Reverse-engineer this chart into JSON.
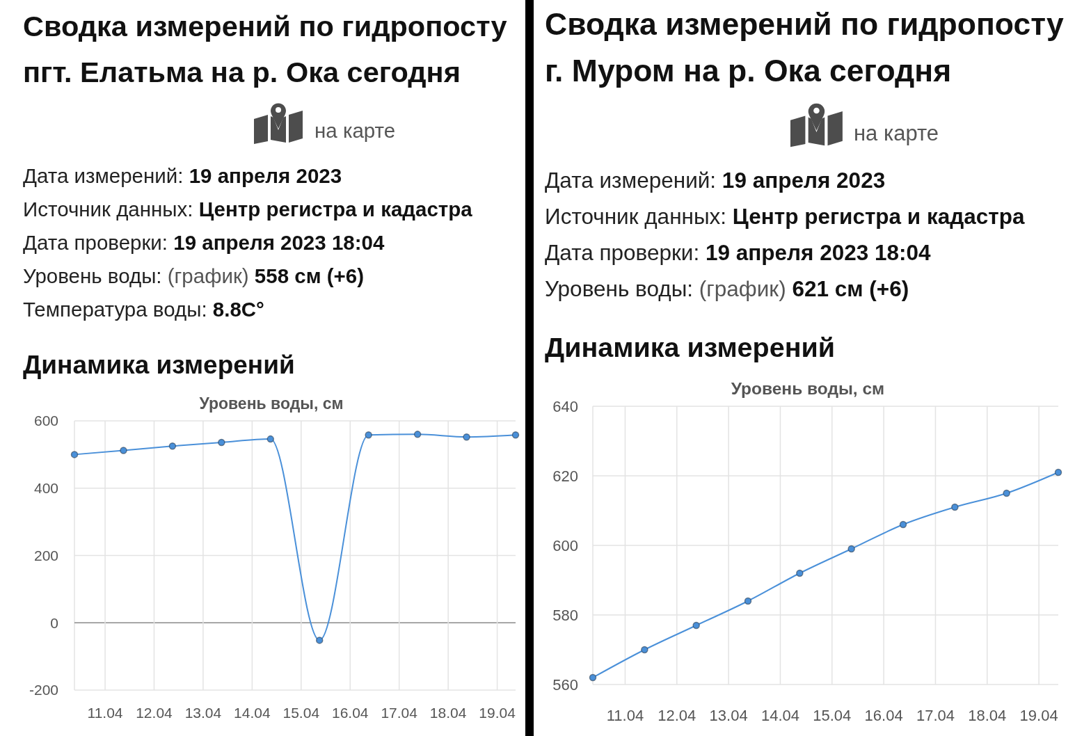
{
  "chart_data": [
    {
      "type": "line",
      "title": "Сводка измерений по гидропосту пгт. Елатьма на р. Ока сегодня",
      "subtitle": "Уровень воды, см",
      "annotations": [
        "на карте",
        "Дата измерений: 19 апреля 2023",
        "Источник данных: Центр регистра и кадастра",
        "Дата проверки: 19 апреля 2023 18:04",
        "Уровень воды: (график) 558 см (+6)",
        "Температура воды: 8.8C°",
        "Динамика измерений"
      ],
      "x": [
        "2023-04-10T09:00",
        "2023-04-11T09:00",
        "2023-04-12T09:00",
        "2023-04-13T09:00",
        "2023-04-14T09:00",
        "2023-04-15T09:00",
        "2023-04-16T09:00",
        "2023-04-17T09:00",
        "2023-04-18T09:00",
        "2023-04-19T09:00"
      ],
      "series": [
        {
          "color": "#4a90d9",
          "values": [
            500,
            512,
            525,
            536,
            546,
            -52,
            558,
            560,
            552,
            558
          ]
        }
      ],
      "xlim": [
        "2023-04-10T09:00",
        "2023-04-19T09:00"
      ],
      "xticks": [
        {
          "value": "2023-04-11",
          "label": "11.04"
        },
        {
          "value": "2023-04-12",
          "label": "12.04"
        },
        {
          "value": "2023-04-13",
          "label": "13.04"
        },
        {
          "value": "2023-04-14",
          "label": "14.04"
        },
        {
          "value": "2023-04-15",
          "label": "15.04"
        },
        {
          "value": "2023-04-16",
          "label": "16.04"
        },
        {
          "value": "2023-04-17",
          "label": "17.04"
        },
        {
          "value": "2023-04-18",
          "label": "18.04"
        },
        {
          "value": "2023-04-19",
          "label": "19.04"
        }
      ],
      "ylim": [
        -200,
        600
      ],
      "yticks": [
        -200,
        0,
        200,
        400,
        600
      ],
      "grid": true,
      "marker": "circle"
    },
    {
      "type": "line",
      "title": "Сводка измерений по гидропосту г. Муром на р. Ока сегодня",
      "subtitle": "Уровень воды, см",
      "annotations": [
        "на карте",
        "Дата измерений: 19 апреля 2023",
        "Источник данных: Центр регистра и кадастра",
        "Дата проверки: 19 апреля 2023 18:04",
        "Уровень воды: (график) 621 см (+6)",
        "Динамика измерений"
      ],
      "x": [
        "2023-04-10T09:00",
        "2023-04-11T09:00",
        "2023-04-12T09:00",
        "2023-04-13T09:00",
        "2023-04-14T09:00",
        "2023-04-15T09:00",
        "2023-04-16T09:00",
        "2023-04-17T09:00",
        "2023-04-18T09:00",
        "2023-04-19T09:00"
      ],
      "series": [
        {
          "color": "#4a90d9",
          "values": [
            562,
            570,
            577,
            584,
            592,
            599,
            606,
            611,
            615,
            621
          ]
        }
      ],
      "xlim": [
        "2023-04-10T09:00",
        "2023-04-19T09:00"
      ],
      "xticks": [
        {
          "value": "2023-04-11",
          "label": "11.04"
        },
        {
          "value": "2023-04-12",
          "label": "12.04"
        },
        {
          "value": "2023-04-13",
          "label": "13.04"
        },
        {
          "value": "2023-04-14",
          "label": "14.04"
        },
        {
          "value": "2023-04-15",
          "label": "15.04"
        },
        {
          "value": "2023-04-16",
          "label": "16.04"
        },
        {
          "value": "2023-04-17",
          "label": "17.04"
        },
        {
          "value": "2023-04-18",
          "label": "18.04"
        },
        {
          "value": "2023-04-19",
          "label": "19.04"
        }
      ],
      "ylim": [
        560,
        640
      ],
      "yticks": [
        560,
        580,
        600,
        620,
        640
      ],
      "grid": true,
      "marker": "circle"
    }
  ]
}
